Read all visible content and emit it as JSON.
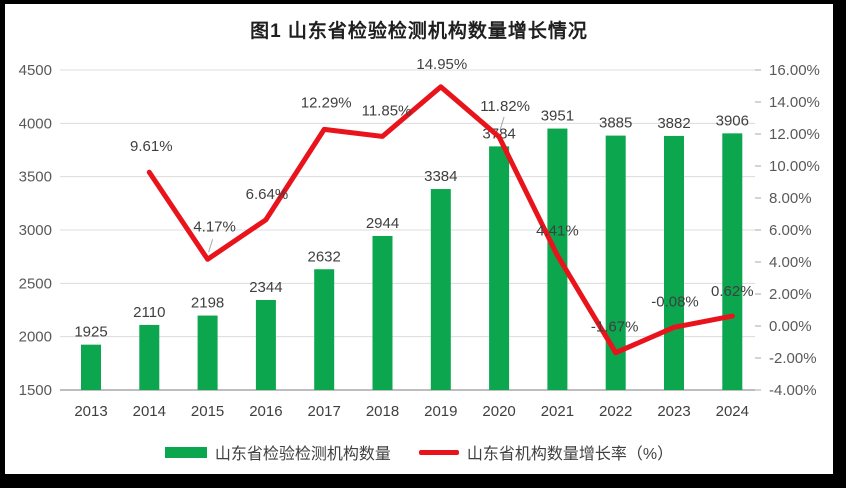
{
  "title": "图1  山东省检验检测机构数量增长情况",
  "colors": {
    "bar_green": "#0BA64E",
    "line_red": "#E9131C",
    "gridline": "#DCDCDC",
    "axis_line": "#A9A9A9",
    "tick_text": "#595959",
    "label_text": "#3F3F3F",
    "frame": "#000000"
  },
  "chart_data": {
    "type": "bar+line combo",
    "title": "图1  山东省检验检测机构数量增长情况",
    "categories": [
      "2013",
      "2014",
      "2015",
      "2016",
      "2017",
      "2018",
      "2019",
      "2020",
      "2021",
      "2022",
      "2023",
      "2024"
    ],
    "series": [
      {
        "name": "山东省检验检测机构数量",
        "type": "bar",
        "axis": "left",
        "color": "#0BA64E",
        "values": [
          1925,
          2110,
          2198,
          2344,
          2632,
          2944,
          3384,
          3784,
          3951,
          3885,
          3882,
          3906
        ],
        "labels": [
          "1925",
          "2110",
          "2198",
          "2344",
          "2632",
          "2944",
          "3384",
          "3784",
          "3951",
          "3885",
          "3882",
          "3906"
        ]
      },
      {
        "name": "山东省机构数量增长率（%）",
        "type": "line",
        "axis": "right",
        "color": "#E9131C",
        "values": [
          null,
          9.61,
          4.17,
          6.64,
          12.29,
          11.85,
          14.95,
          11.82,
          4.41,
          -1.67,
          -0.08,
          0.62
        ],
        "labels": [
          "",
          "9.61%",
          "4.17%",
          "6.64%",
          "12.29%",
          "11.85%",
          "14.95%",
          "11.82%",
          "4.41%",
          "-1.67%",
          "-0.08%",
          "0.62%"
        ]
      }
    ],
    "left_axis": {
      "min": 1500,
      "max": 4500,
      "step": 500,
      "ticks": [
        "4500",
        "4000",
        "3500",
        "3000",
        "2500",
        "2000",
        "1500"
      ]
    },
    "right_axis": {
      "min": -4,
      "max": 16,
      "step": 2,
      "ticks": [
        "16.00%",
        "14.00%",
        "12.00%",
        "10.00%",
        "8.00%",
        "6.00%",
        "4.00%",
        "2.00%",
        "0.00%",
        "-2.00%",
        "-4.00%"
      ]
    },
    "grid": "horizontal",
    "legend_position": "bottom"
  }
}
